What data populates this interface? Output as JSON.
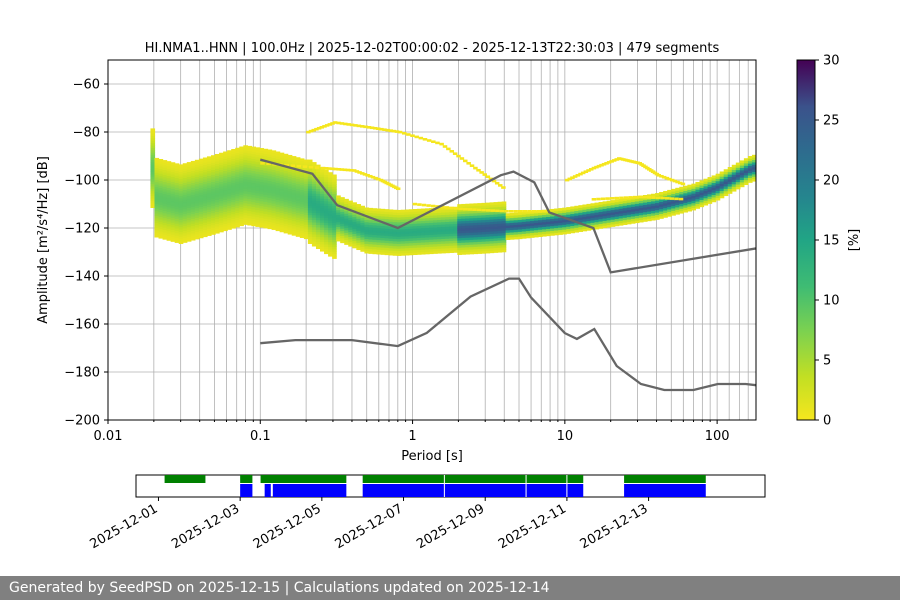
{
  "chart_data": {
    "type": "heatmap",
    "title": "HI.NMA1..HNN | 100.0Hz | 2025-12-02T00:00:02 - 2025-12-13T22:30:03 | 479 segments",
    "xlabel": "Period [s]",
    "ylabel": "Amplitude [m²/s⁴/Hz] [dB]",
    "xscale": "log",
    "xlim": [
      0.01,
      180
    ],
    "ylim": [
      -200,
      -50
    ],
    "x_ticks": [
      0.01,
      0.1,
      1,
      10,
      100
    ],
    "x_tick_labels": [
      "0.01",
      "0.1",
      "1",
      "10",
      "100"
    ],
    "y_ticks": [
      -200,
      -180,
      -160,
      -140,
      -120,
      -100,
      -80,
      -60
    ],
    "y_tick_labels": [
      "−200",
      "−180",
      "−160",
      "−140",
      "−120",
      "−100",
      "−80",
      "−60"
    ],
    "colorbar": {
      "label": "[%]",
      "range": [
        0,
        30
      ],
      "ticks": [
        0,
        5,
        10,
        15,
        20,
        25,
        30
      ],
      "tick_labels": [
        "0",
        "5",
        "10",
        "15",
        "20",
        "25",
        "30"
      ]
    },
    "mode_curve": [
      [
        0.02,
        -107
      ],
      [
        0.03,
        -110
      ],
      [
        0.05,
        -106
      ],
      [
        0.08,
        -102
      ],
      [
        0.12,
        -104
      ],
      [
        0.2,
        -108
      ],
      [
        0.3,
        -115
      ],
      [
        0.5,
        -121
      ],
      [
        0.8,
        -122
      ],
      [
        1.5,
        -121
      ],
      [
        3,
        -120
      ],
      [
        5,
        -119
      ],
      [
        10,
        -117
      ],
      [
        20,
        -114
      ],
      [
        40,
        -111
      ],
      [
        70,
        -107
      ],
      [
        100,
        -103
      ],
      [
        130,
        -99
      ],
      [
        170,
        -95
      ]
    ],
    "series": [
      {
        "name": "NHNM",
        "color": "#666666",
        "points": [
          [
            0.1,
            -91.5
          ],
          [
            0.22,
            -97.4
          ],
          [
            0.32,
            -110.5
          ],
          [
            0.8,
            -120
          ],
          [
            3.8,
            -98
          ],
          [
            4.6,
            -96.5
          ],
          [
            6.3,
            -101
          ],
          [
            7.9,
            -113.5
          ],
          [
            15.4,
            -120
          ],
          [
            20,
            -138.5
          ],
          [
            180,
            -128.5
          ]
        ]
      },
      {
        "name": "NLNM",
        "color": "#666666",
        "points": [
          [
            0.1,
            -168
          ],
          [
            0.17,
            -166.7
          ],
          [
            0.4,
            -166.7
          ],
          [
            0.8,
            -169.2
          ],
          [
            1.24,
            -163.7
          ],
          [
            2.4,
            -148.6
          ],
          [
            4.3,
            -141.1
          ],
          [
            5,
            -141.1
          ],
          [
            6,
            -149
          ],
          [
            10,
            -163.8
          ],
          [
            12,
            -166.2
          ],
          [
            15.6,
            -162.1
          ],
          [
            21.9,
            -177.5
          ],
          [
            31.6,
            -185
          ],
          [
            45,
            -187.5
          ],
          [
            70,
            -187.5
          ],
          [
            101,
            -185
          ],
          [
            154,
            -185
          ],
          [
            180,
            -185.5
          ]
        ]
      }
    ],
    "timeline": {
      "date_labels": [
        "2025-12-01",
        "2025-12-03",
        "2025-12-05",
        "2025-12-07",
        "2025-12-09",
        "2025-12-11",
        "2025-12-13"
      ],
      "start_day": 30.45,
      "end_day": 45.85,
      "green_segments": [
        [
          31.15,
          32.15
        ],
        [
          33.0,
          33.3
        ],
        [
          33.5,
          35.6
        ],
        [
          36.0,
          41.4
        ],
        [
          42.4,
          44.4
        ]
      ],
      "blue_segments": [
        [
          33.0,
          33.3
        ],
        [
          33.6,
          33.75
        ],
        [
          33.8,
          35.6
        ],
        [
          36.0,
          41.4
        ],
        [
          42.4,
          44.4
        ]
      ],
      "white_gaps": [
        38.0,
        40.0,
        41.0
      ]
    }
  },
  "footer": {
    "generated_text": "Generated by SeedPSD on 2025-12-15 | Calculations updated on 2025-12-14"
  }
}
